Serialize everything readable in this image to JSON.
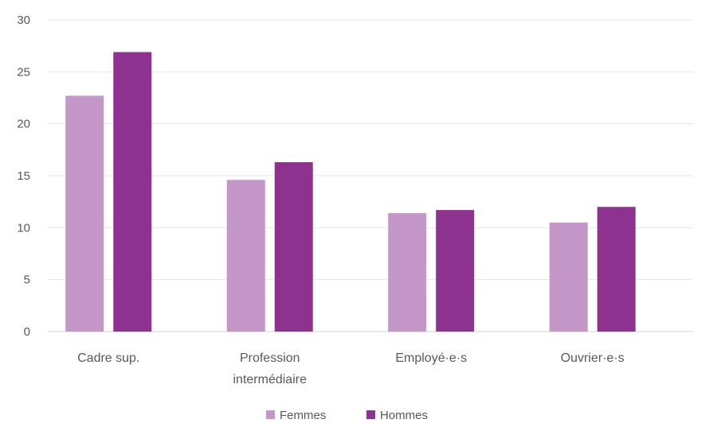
{
  "chart_data": {
    "type": "bar",
    "title": "",
    "xlabel": "",
    "ylabel": "",
    "ylim": [
      0,
      30
    ],
    "yticks": [
      0,
      5,
      10,
      15,
      20,
      25,
      30
    ],
    "grid": true,
    "legend_position": "bottom",
    "categories": [
      [
        "Cadre sup."
      ],
      [
        "Profession",
        "intermédiaire"
      ],
      [
        "Employé·e·s"
      ],
      [
        "Ouvrier·e·s"
      ]
    ],
    "series": [
      {
        "name": "Femmes",
        "color": "#c497c8",
        "values": [
          22.7,
          14.6,
          11.4,
          10.5
        ]
      },
      {
        "name": "Hommes",
        "color": "#8e3290",
        "values": [
          26.9,
          16.3,
          11.7,
          12.0
        ]
      }
    ]
  }
}
